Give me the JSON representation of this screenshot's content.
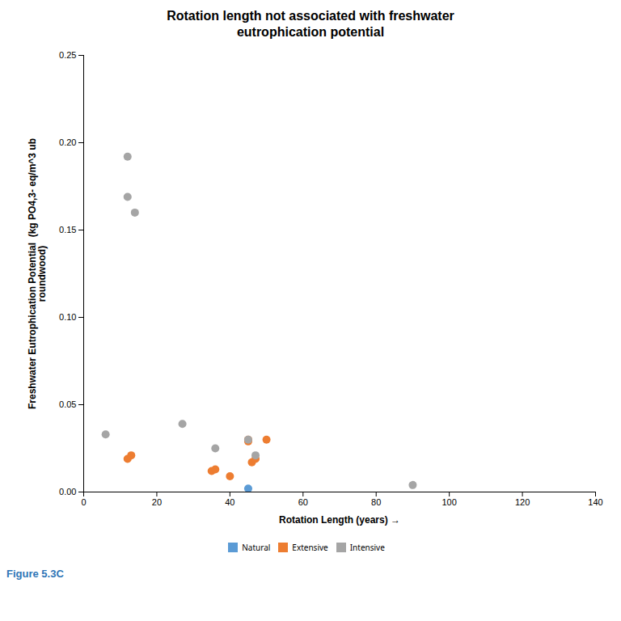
{
  "chart_data": {
    "type": "scatter",
    "title": "Rotation length not associated with freshwater\neutrophication potential",
    "xlabel": "Rotation Length (years)",
    "ylabel": "Freshwater Eutrophication Potential  (kg PO4,3- eq/m^3 ub\nroundwood)",
    "xlim": [
      0,
      140
    ],
    "ylim": [
      0,
      0.25
    ],
    "xticks": [
      0,
      20,
      40,
      60,
      80,
      100,
      120,
      140
    ],
    "yticks": [
      {
        "value": 0,
        "label": "0.00"
      },
      0.05,
      {
        "value": 0.1,
        "label": "0.10"
      },
      0.15,
      {
        "value": 0.2,
        "label": "0.20"
      },
      0.25
    ],
    "series": [
      {
        "name": "Natural",
        "color": "#5B9BD5",
        "x": [
          45
        ],
        "values": [
          0.002
        ]
      },
      {
        "name": "Extensive",
        "color": "#ED7D31",
        "x": [
          12,
          13,
          35,
          36,
          40,
          45,
          45,
          46,
          47,
          50
        ],
        "values": [
          0.019,
          0.021,
          0.012,
          0.013,
          0.009,
          0.029,
          0.03,
          0.017,
          0.019,
          0.03
        ]
      },
      {
        "name": "Intensive",
        "color": "#A5A5A5",
        "x": [
          6,
          12,
          12,
          14,
          27,
          36,
          45,
          47,
          90
        ],
        "values": [
          0.033,
          0.192,
          0.169,
          0.16,
          0.039,
          0.025,
          0.03,
          0.021,
          0.004
        ]
      }
    ],
    "legend": "bottom",
    "grid": false,
    "annotations": [
      {
        "text": "Figure 5.3C",
        "color": "#2E75B6"
      }
    ]
  }
}
